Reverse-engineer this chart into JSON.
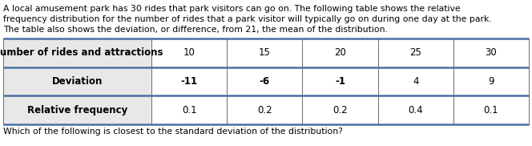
{
  "paragraph": [
    "A local amusement park has 30 rides that park visitors can go on. The following table shows the relative",
    "frequency distribution for the number of rides that a park visitor will typically go on during one day at the park.",
    "The table also shows the deviation, or difference, from 21, the mean of the distribution."
  ],
  "footer": "Which of the following is closest to the standard deviation of the distribution?",
  "col_header": [
    "Number of rides and attractions",
    "10",
    "15",
    "20",
    "25",
    "30"
  ],
  "row2_label": "Deviation",
  "row2_values": [
    "-11",
    "-6",
    "-1",
    "4",
    "9"
  ],
  "row3_label": "Relative frequency",
  "row3_values": [
    "0.1",
    "0.2",
    "0.2",
    "0.4",
    "0.1"
  ],
  "bg_color": "#ffffff",
  "header_bg": "#e8e8e8",
  "row_bg": "#ffffff",
  "border_color": "#555555",
  "thick_border_color": "#4a6fa5",
  "text_color": "#000000",
  "paragraph_fontsize": 7.8,
  "table_fontsize": 8.5,
  "footer_fontsize": 7.8
}
